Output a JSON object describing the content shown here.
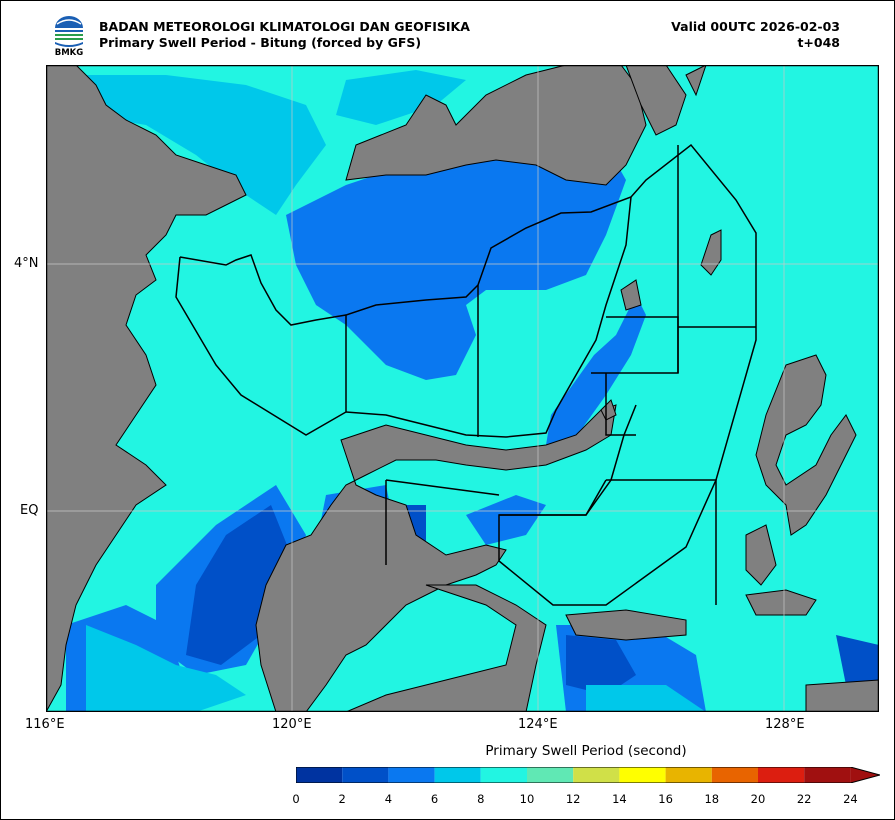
{
  "header": {
    "agency": "BADAN METEOROLOGI KLIMATOLOGI DAN GEOFISIKA",
    "product": "Primary Swell Period - Bitung (forced by GFS)",
    "valid": "Valid 00UTC 2026-02-03",
    "lead": "t+048",
    "logo_text": "BMKG"
  },
  "map": {
    "region": "Sulawesi Sea / Maluku Sea area",
    "lon_labels": [
      "116°E",
      "120°E",
      "124°E",
      "128°E"
    ],
    "lat_labels": [
      "4°N",
      "EQ"
    ],
    "land_color": "#808080",
    "grid": true
  },
  "colorbar": {
    "title": "Primary Swell Period (second)",
    "ticks": [
      "0",
      "2",
      "4",
      "6",
      "8",
      "10",
      "12",
      "14",
      "16",
      "18",
      "20",
      "22",
      "24"
    ],
    "colors": [
      "#0033a0",
      "#0050c8",
      "#0a78f0",
      "#00c8ea",
      "#22f5e2",
      "#60e8b4",
      "#d0e048",
      "#ffff00",
      "#e8b400",
      "#e86400",
      "#dc1e10",
      "#a01010"
    ],
    "extend": "max"
  }
}
